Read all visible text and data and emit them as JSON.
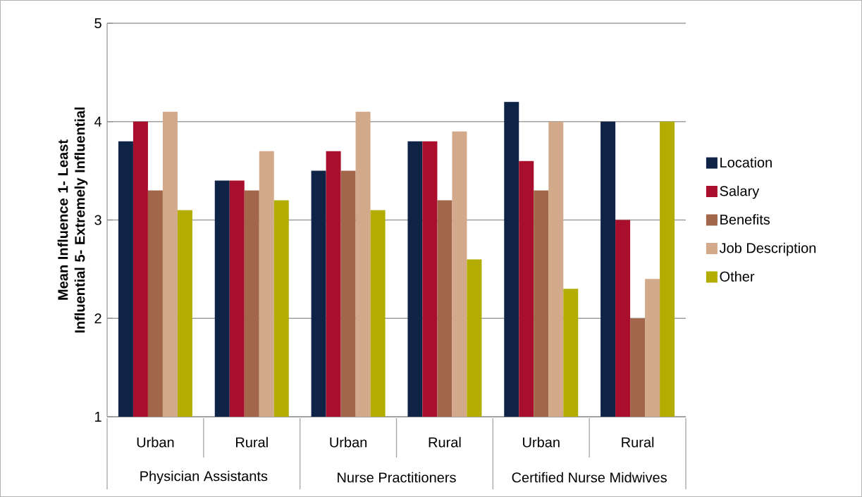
{
  "chart_data": {
    "type": "bar",
    "ylabel": "Mean Influence 1- Least Influential 5- Extremely Influential",
    "categories": [
      "Urban",
      "Rural",
      "Urban",
      "Rural",
      "Urban",
      "Rural"
    ],
    "annotations": [
      "Physician Assistants",
      "Nurse Practitioners",
      "Certified Nurse Midwives"
    ],
    "series": [
      {
        "name": "Location",
        "color": "#0f2346",
        "values": [
          3.8,
          3.4,
          3.5,
          3.8,
          4.2,
          4.0
        ]
      },
      {
        "name": "Salary",
        "color": "#a90f2c",
        "values": [
          4.0,
          3.4,
          3.7,
          3.8,
          3.6,
          3.0
        ]
      },
      {
        "name": "Benefits",
        "color": "#a2674b",
        "values": [
          3.3,
          3.3,
          3.5,
          3.2,
          3.3,
          2.0
        ]
      },
      {
        "name": "Job Description",
        "color": "#d2a98a",
        "values": [
          4.1,
          3.7,
          4.1,
          3.9,
          4.0,
          2.4
        ]
      },
      {
        "name": "Other",
        "color": "#b2ad00",
        "values": [
          3.1,
          3.2,
          3.1,
          2.6,
          2.3,
          4.0
        ]
      }
    ],
    "ylim": [
      1,
      5
    ],
    "yticks": [
      1,
      2,
      3,
      4,
      5
    ],
    "grid": "y",
    "legend": "right"
  }
}
